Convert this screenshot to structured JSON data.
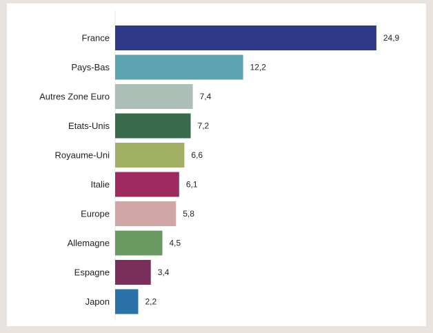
{
  "chart_data": {
    "type": "bar",
    "orientation": "horizontal",
    "categories": [
      "France",
      "Pays-Bas",
      "Autres Zone Euro",
      "Etats-Unis",
      "Royaume-Uni",
      "Italie",
      "Europe",
      "Allemagne",
      "Espagne",
      "Japon"
    ],
    "values": [
      24.9,
      12.2,
      7.4,
      7.2,
      6.6,
      6.1,
      5.8,
      4.5,
      3.4,
      2.2
    ],
    "value_labels": [
      "24,9",
      "12,2",
      "7,4",
      "7,2",
      "6,6",
      "6,1",
      "5,8",
      "4,5",
      "3,4",
      "2,2"
    ],
    "colors": [
      "#2e3a87",
      "#5ea3b0",
      "#abbfb6",
      "#3a6a4c",
      "#a2b065",
      "#9e2a5f",
      "#d0a6a6",
      "#6a9a62",
      "#7a2e5c",
      "#2a72a8"
    ],
    "title": "",
    "xlabel": "",
    "ylabel": "",
    "xlim": [
      0,
      25.5
    ],
    "grid": false,
    "legend": "none"
  }
}
